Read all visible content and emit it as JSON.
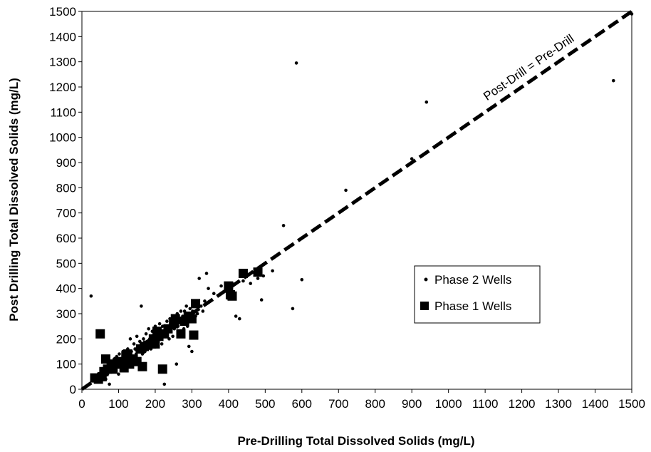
{
  "chart_data": {
    "type": "scatter",
    "title": "",
    "xlabel": "Pre-Drilling Total Dissolved Solids (mg/L)",
    "ylabel": "Post Drilling Total Dissolved Solids (mg/L)",
    "xlim": [
      0,
      1500
    ],
    "ylim": [
      0,
      1500
    ],
    "xticks": [
      "0",
      "100",
      "200",
      "300",
      "400",
      "500",
      "600",
      "700",
      "800",
      "900",
      "1000",
      "1100",
      "1200",
      "1300",
      "1400",
      "1500"
    ],
    "yticks": [
      "0",
      "100",
      "200",
      "300",
      "400",
      "500",
      "600",
      "700",
      "800",
      "900",
      "1000",
      "1100",
      "1200",
      "1300",
      "1400",
      "1500"
    ],
    "grid": false,
    "legend_position": "right-center",
    "reference_line": {
      "label": "Post-Drill = Pre-Drill",
      "x": [
        0,
        1500
      ],
      "y": [
        0,
        1500
      ],
      "style": "dashed",
      "color": "#000000"
    },
    "series": [
      {
        "name": "Phase 2 Wells",
        "marker": "dot",
        "color": "#000000",
        "points": [
          [
            25,
            370
          ],
          [
            30,
            40
          ],
          [
            35,
            55
          ],
          [
            40,
            45
          ],
          [
            45,
            60
          ],
          [
            50,
            50
          ],
          [
            55,
            70
          ],
          [
            60,
            65
          ],
          [
            62,
            80
          ],
          [
            65,
            40
          ],
          [
            68,
            90
          ],
          [
            70,
            60
          ],
          [
            72,
            100
          ],
          [
            75,
            20
          ],
          [
            78,
            85
          ],
          [
            80,
            110
          ],
          [
            82,
            95
          ],
          [
            85,
            75
          ],
          [
            88,
            120
          ],
          [
            90,
            100
          ],
          [
            92,
            90
          ],
          [
            95,
            130
          ],
          [
            98,
            110
          ],
          [
            100,
            60
          ],
          [
            102,
            140
          ],
          [
            105,
            100
          ],
          [
            108,
            120
          ],
          [
            110,
            90
          ],
          [
            112,
            150
          ],
          [
            115,
            130
          ],
          [
            118,
            110
          ],
          [
            120,
            140
          ],
          [
            122,
            100
          ],
          [
            125,
            160
          ],
          [
            128,
            130
          ],
          [
            130,
            120
          ],
          [
            132,
            200
          ],
          [
            135,
            150
          ],
          [
            138,
            110
          ],
          [
            140,
            130
          ],
          [
            142,
            180
          ],
          [
            145,
            160
          ],
          [
            148,
            140
          ],
          [
            150,
            210
          ],
          [
            152,
            150
          ],
          [
            155,
            170
          ],
          [
            158,
            190
          ],
          [
            160,
            160
          ],
          [
            162,
            330
          ],
          [
            165,
            140
          ],
          [
            168,
            200
          ],
          [
            170,
            180
          ],
          [
            172,
            150
          ],
          [
            175,
            220
          ],
          [
            178,
            190
          ],
          [
            180,
            170
          ],
          [
            182,
            240
          ],
          [
            185,
            200
          ],
          [
            188,
            160
          ],
          [
            190,
            210
          ],
          [
            192,
            230
          ],
          [
            195,
            180
          ],
          [
            198,
            200
          ],
          [
            200,
            250
          ],
          [
            202,
            220
          ],
          [
            205,
            190
          ],
          [
            208,
            240
          ],
          [
            210,
            200
          ],
          [
            212,
            260
          ],
          [
            215,
            230
          ],
          [
            218,
            180
          ],
          [
            220,
            250
          ],
          [
            222,
            210
          ],
          [
            225,
            20
          ],
          [
            228,
            240
          ],
          [
            230,
            220
          ],
          [
            232,
            270
          ],
          [
            235,
            250
          ],
          [
            238,
            200
          ],
          [
            240,
            280
          ],
          [
            242,
            230
          ],
          [
            245,
            260
          ],
          [
            248,
            210
          ],
          [
            250,
            290
          ],
          [
            252,
            240
          ],
          [
            255,
            270
          ],
          [
            258,
            100
          ],
          [
            260,
            300
          ],
          [
            262,
            250
          ],
          [
            265,
            280
          ],
          [
            268,
            230
          ],
          [
            270,
            310
          ],
          [
            272,
            260
          ],
          [
            275,
            290
          ],
          [
            278,
            240
          ],
          [
            280,
            310
          ],
          [
            282,
            270
          ],
          [
            285,
            330
          ],
          [
            288,
            250
          ],
          [
            290,
            300
          ],
          [
            292,
            170
          ],
          [
            295,
            320
          ],
          [
            298,
            280
          ],
          [
            300,
            150
          ],
          [
            302,
            310
          ],
          [
            305,
            340
          ],
          [
            310,
            290
          ],
          [
            315,
            300
          ],
          [
            320,
            440
          ],
          [
            325,
            330
          ],
          [
            330,
            310
          ],
          [
            335,
            350
          ],
          [
            340,
            460
          ],
          [
            345,
            400
          ],
          [
            360,
            380
          ],
          [
            380,
            410
          ],
          [
            390,
            390
          ],
          [
            400,
            360
          ],
          [
            410,
            420
          ],
          [
            420,
            290
          ],
          [
            430,
            280
          ],
          [
            440,
            430
          ],
          [
            460,
            420
          ],
          [
            480,
            440
          ],
          [
            490,
            355
          ],
          [
            495,
            450
          ],
          [
            520,
            470
          ],
          [
            550,
            650
          ],
          [
            575,
            320
          ],
          [
            585,
            1295
          ],
          [
            600,
            435
          ],
          [
            720,
            790
          ],
          [
            900,
            915
          ],
          [
            940,
            1140
          ],
          [
            1450,
            1225
          ],
          [
            1500,
            1490
          ]
        ]
      },
      {
        "name": "Phase 1 Wells",
        "marker": "square",
        "color": "#000000",
        "points": [
          [
            35,
            45
          ],
          [
            45,
            40
          ],
          [
            50,
            220
          ],
          [
            55,
            50
          ],
          [
            60,
            70
          ],
          [
            65,
            120
          ],
          [
            70,
            80
          ],
          [
            80,
            90
          ],
          [
            85,
            80
          ],
          [
            90,
            100
          ],
          [
            100,
            110
          ],
          [
            110,
            100
          ],
          [
            115,
            85
          ],
          [
            120,
            130
          ],
          [
            125,
            140
          ],
          [
            130,
            100
          ],
          [
            140,
            120
          ],
          [
            150,
            110
          ],
          [
            160,
            160
          ],
          [
            165,
            90
          ],
          [
            170,
            170
          ],
          [
            180,
            175
          ],
          [
            190,
            180
          ],
          [
            195,
            200
          ],
          [
            200,
            180
          ],
          [
            205,
            230
          ],
          [
            210,
            210
          ],
          [
            220,
            80
          ],
          [
            225,
            220
          ],
          [
            235,
            240
          ],
          [
            250,
            260
          ],
          [
            255,
            280
          ],
          [
            270,
            220
          ],
          [
            280,
            270
          ],
          [
            290,
            290
          ],
          [
            300,
            280
          ],
          [
            305,
            215
          ],
          [
            310,
            340
          ],
          [
            400,
            410
          ],
          [
            405,
            375
          ],
          [
            410,
            370
          ],
          [
            440,
            460
          ],
          [
            480,
            465
          ]
        ]
      }
    ]
  }
}
